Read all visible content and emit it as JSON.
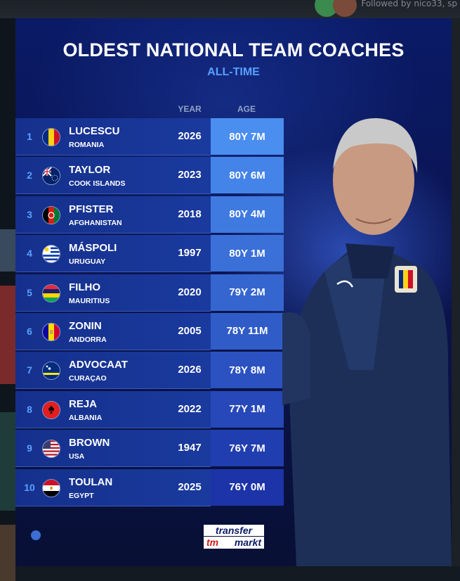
{
  "feed": {
    "followed_by_text": "Followed by nico33, sp"
  },
  "graphic": {
    "title": "OLDEST NATIONAL TEAM COACHES",
    "subtitle": "ALL-TIME",
    "columns": {
      "year": "YEAR",
      "age": "AGE"
    },
    "age_column_colors": [
      "#4a8ef0",
      "#4484e8",
      "#3f7ae0",
      "#3a70d8",
      "#3566d0",
      "#305cc8",
      "#2b52c0",
      "#2648b8",
      "#213eb0",
      "#1c34a8"
    ],
    "rows": [
      {
        "rank": "1",
        "name": "LUCESCU",
        "country": "ROMANIA",
        "year": "2026",
        "age": "80Y 7M",
        "flag": "romania-flag"
      },
      {
        "rank": "2",
        "name": "TAYLOR",
        "country": "COOK ISLANDS",
        "year": "2023",
        "age": "80Y 6M",
        "flag": "cook-islands-flag"
      },
      {
        "rank": "3",
        "name": "PFISTER",
        "country": "AFGHANISTAN",
        "year": "2018",
        "age": "80Y 4M",
        "flag": "afghanistan-flag"
      },
      {
        "rank": "4",
        "name": "MÁSPOLI",
        "country": "URUGUAY",
        "year": "1997",
        "age": "80Y 1M",
        "flag": "uruguay-flag"
      },
      {
        "rank": "5",
        "name": "FILHO",
        "country": "MAURITIUS",
        "year": "2020",
        "age": "79Y 2M",
        "flag": "mauritius-flag"
      },
      {
        "rank": "6",
        "name": "ZONIN",
        "country": "ANDORRA",
        "year": "2005",
        "age": "78Y 11M",
        "flag": "andorra-flag"
      },
      {
        "rank": "7",
        "name": "ADVOCAAT",
        "country": "CURAÇAO",
        "year": "2026",
        "age": "78Y 8M",
        "flag": "curacao-flag"
      },
      {
        "rank": "8",
        "name": "REJA",
        "country": "ALBANIA",
        "year": "2022",
        "age": "77Y 1M",
        "flag": "albania-flag"
      },
      {
        "rank": "9",
        "name": "BROWN",
        "country": "USA",
        "year": "1947",
        "age": "76Y 7M",
        "flag": "usa-flag"
      },
      {
        "rank": "10",
        "name": "TOULAN",
        "country": "EGYPT",
        "year": "2025",
        "age": "76Y 0M",
        "flag": "egypt-flag"
      }
    ],
    "logo": {
      "line1": "transfer",
      "line2": "markt"
    },
    "accent_color": "#5aa0ff",
    "background_color": "#0a1a66"
  }
}
